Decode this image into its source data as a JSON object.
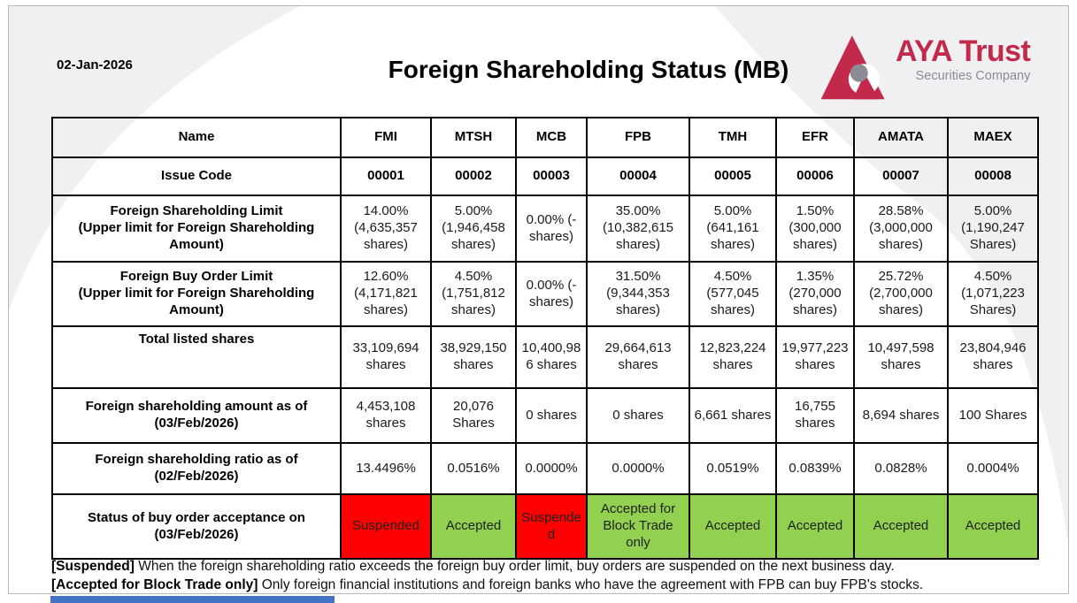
{
  "slide": {
    "date": "02-Jan-2026",
    "title": "Foreign Shareholding Status (MB)",
    "logo": {
      "name": "AYA Trust",
      "subtitle": "Securities Company",
      "mark": "triangle-logo-icon",
      "brand_red": "#c3294b",
      "brand_gray": "#8b8b95"
    },
    "colors": {
      "accepted_bg": "#92d050",
      "suspended_bg": "#ff0000",
      "swoosh_gray": "#f0f0f2",
      "bottom_bar_blue": "#4472c4"
    }
  },
  "table": {
    "header_label": "Name",
    "columns": [
      "FMI",
      "MTSH",
      "MCB",
      "FPB",
      "TMH",
      "EFR",
      "AMATA",
      "MAEX"
    ],
    "rows": [
      {
        "id": "issue-code",
        "label": "Issue Code",
        "type": "code",
        "values": [
          "00001",
          "00002",
          "00003",
          "00004",
          "00005",
          "00006",
          "00007",
          "00008"
        ]
      },
      {
        "id": "foreign-shareholding-limit",
        "label": "Foreign Shareholding Limit\n(Upper limit for Foreign Shareholding Amount)",
        "type": "value",
        "values": [
          "14.00% (4,635,357 shares)",
          "5.00% (1,946,458 shares)",
          "0.00% (- shares)",
          "35.00% (10,382,615 shares)",
          "5.00% (641,161 shares)",
          "1.50% (300,000 shares)",
          "28.58% (3,000,000 shares)",
          "5.00% (1,190,247 Shares)"
        ]
      },
      {
        "id": "foreign-buy-order-limit",
        "label": "Foreign Buy Order Limit\n(Upper limit for Foreign Shareholding Amount)",
        "type": "value",
        "values": [
          "12.60% (4,171,821 shares)",
          "4.50% (1,751,812 shares)",
          "0.00% (- shares)",
          "31.50% (9,344,353 shares)",
          "4.50% (577,045 shares)",
          "1.35% (270,000 shares)",
          "25.72% (2,700,000 shares)",
          "4.50% (1,071,223 Shares)"
        ]
      },
      {
        "id": "total-listed-shares",
        "label": "Total listed shares",
        "type": "value",
        "values": [
          "33,109,694 shares",
          "38,929,150 shares",
          "10,400,986 shares",
          "29,664,613 shares",
          "12,823,224 shares",
          "19,977,223 shares",
          "10,497,598 shares",
          "23,804,946 shares"
        ]
      },
      {
        "id": "foreign-shareholding-amount",
        "label": "Foreign shareholding amount as of\n(03/Feb/2026)",
        "type": "value",
        "values": [
          "4,453,108 shares",
          "20,076 Shares",
          "0 shares",
          "0 shares",
          "6,661 shares",
          "16,755 shares",
          "8,694 shares",
          "100 Shares"
        ]
      },
      {
        "id": "foreign-shareholding-ratio",
        "label": "Foreign shareholding ratio as of\n(02/Feb/2026)",
        "type": "value",
        "values": [
          "13.4496%",
          "0.0516%",
          "0.0000%",
          "0.0000%",
          "0.0519%",
          "0.0839%",
          "0.0828%",
          "0.0004%"
        ]
      },
      {
        "id": "buy-order-status",
        "label": "Status of buy order acceptance on\n(03/Feb/2026)",
        "type": "status",
        "values": [
          "Suspended",
          "Accepted",
          "Suspended",
          "Accepted for Block Trade only",
          "Accepted",
          "Accepted",
          "Accepted",
          "Accepted"
        ],
        "states": [
          "suspended",
          "accepted",
          "suspended",
          "accepted",
          "accepted",
          "accepted",
          "accepted",
          "accepted"
        ]
      }
    ]
  },
  "notes": [
    {
      "tag": "[Suspended]",
      "text": "When the foreign shareholding ratio exceeds the foreign buy order limit, buy orders are suspended on the next business day."
    },
    {
      "tag": "[Accepted for Block Trade only]",
      "text": "Only foreign financial institutions and foreign banks who have the agreement with FPB can buy FPB's stocks."
    }
  ]
}
